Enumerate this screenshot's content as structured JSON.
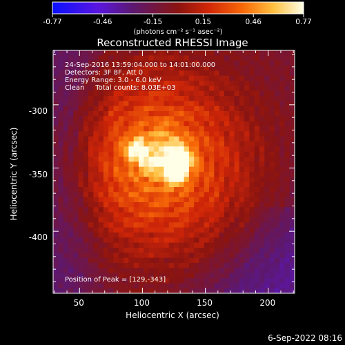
{
  "colorbar": {
    "tick_labels": [
      "-0.77",
      "-0.46",
      "-0.15",
      "0.15",
      "0.46",
      "0.77"
    ],
    "range": [
      -0.77,
      0.77
    ],
    "unit_label": "(photons cm⁻² s⁻¹ asec⁻²)"
  },
  "chart_data": {
    "type": "heatmap",
    "title": "Reconstructed RHESSI Image",
    "xlabel": "Heliocentric X (arcsec)",
    "ylabel": "Heliocentric Y (arcsec)",
    "xlim": [
      29,
      221
    ],
    "ylim": [
      -449,
      -257
    ],
    "xticks": [
      50,
      100,
      150,
      200
    ],
    "yticks": [
      -300,
      -350,
      -400
    ],
    "annotations": [
      "24-Sep-2016 13:59:04.000 to 14:01:00.000",
      "Detectors: 3F 8F, Att 0",
      "Energy Range: 3.0 - 6.0 keV",
      "Clean     Total counts: 8.03E+03",
      "Position of Peak = [129,-343]"
    ],
    "peak": [
      129,
      -343
    ]
  },
  "footer": {
    "timestamp": "6-Sep-2022 08:16"
  }
}
